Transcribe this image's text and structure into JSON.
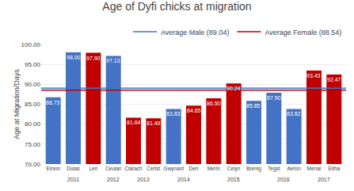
{
  "chart_data": {
    "type": "bar",
    "title": "Age of Dyfi chicks at migration",
    "ylabel": "Age at Migration/Days",
    "categories": [
      "Einion",
      "Dulas",
      "Leri",
      "Ceulan",
      "Clarach",
      "Cerist",
      "Gwynant",
      "Deri",
      "Merin",
      "Celyn",
      "Brenig",
      "Tegid",
      "Aeron",
      "Menai",
      "Eitha"
    ],
    "groups": [
      "2011",
      "2011",
      "2011",
      "2012",
      "2013",
      "2013",
      "2014",
      "2014",
      "2015",
      "2015",
      "2015",
      "2016",
      "2016",
      "2017",
      "2017"
    ],
    "values": [
      86.73,
      98.0,
      97.9,
      97.13,
      81.64,
      81.49,
      83.83,
      84.65,
      86.5,
      90.24,
      85.85,
      87.9,
      83.82,
      93.43,
      92.47
    ],
    "value_labels": [
      "86.73",
      "98.00",
      "97.90",
      "97.13",
      "81.64",
      "81.49",
      "83.83",
      "84.65",
      "86.50",
      "90.24",
      "85.85",
      "87.90",
      "83.82",
      "93.43",
      "92.47"
    ],
    "colors": [
      "#4472C4",
      "#4472C4",
      "#C00000",
      "#4472C4",
      "#C00000",
      "#C00000",
      "#4472C4",
      "#C00000",
      "#C00000",
      "#C00000",
      "#4472C4",
      "#4472C4",
      "#4472C4",
      "#C00000",
      "#C00000"
    ],
    "data_labels": true,
    "ylim": [
      70,
      100
    ],
    "yticks": [
      {
        "value": 70,
        "label": "70.00"
      },
      {
        "value": 75,
        "label": "75.00"
      },
      {
        "value": 80,
        "label": "80.00"
      },
      {
        "value": 85,
        "label": "85.00"
      },
      {
        "value": 90,
        "label": "90.00"
      },
      {
        "value": 95,
        "label": "95.00"
      },
      {
        "value": 100,
        "label": "100.00"
      }
    ],
    "grid": true,
    "legend": "upper right",
    "reference_lines": [
      {
        "name": "Average Male (89.04)",
        "value": 89.04,
        "color": "#4472C4"
      },
      {
        "name": "Average Female (88.54)",
        "value": 88.54,
        "color": "#C00000"
      }
    ]
  }
}
